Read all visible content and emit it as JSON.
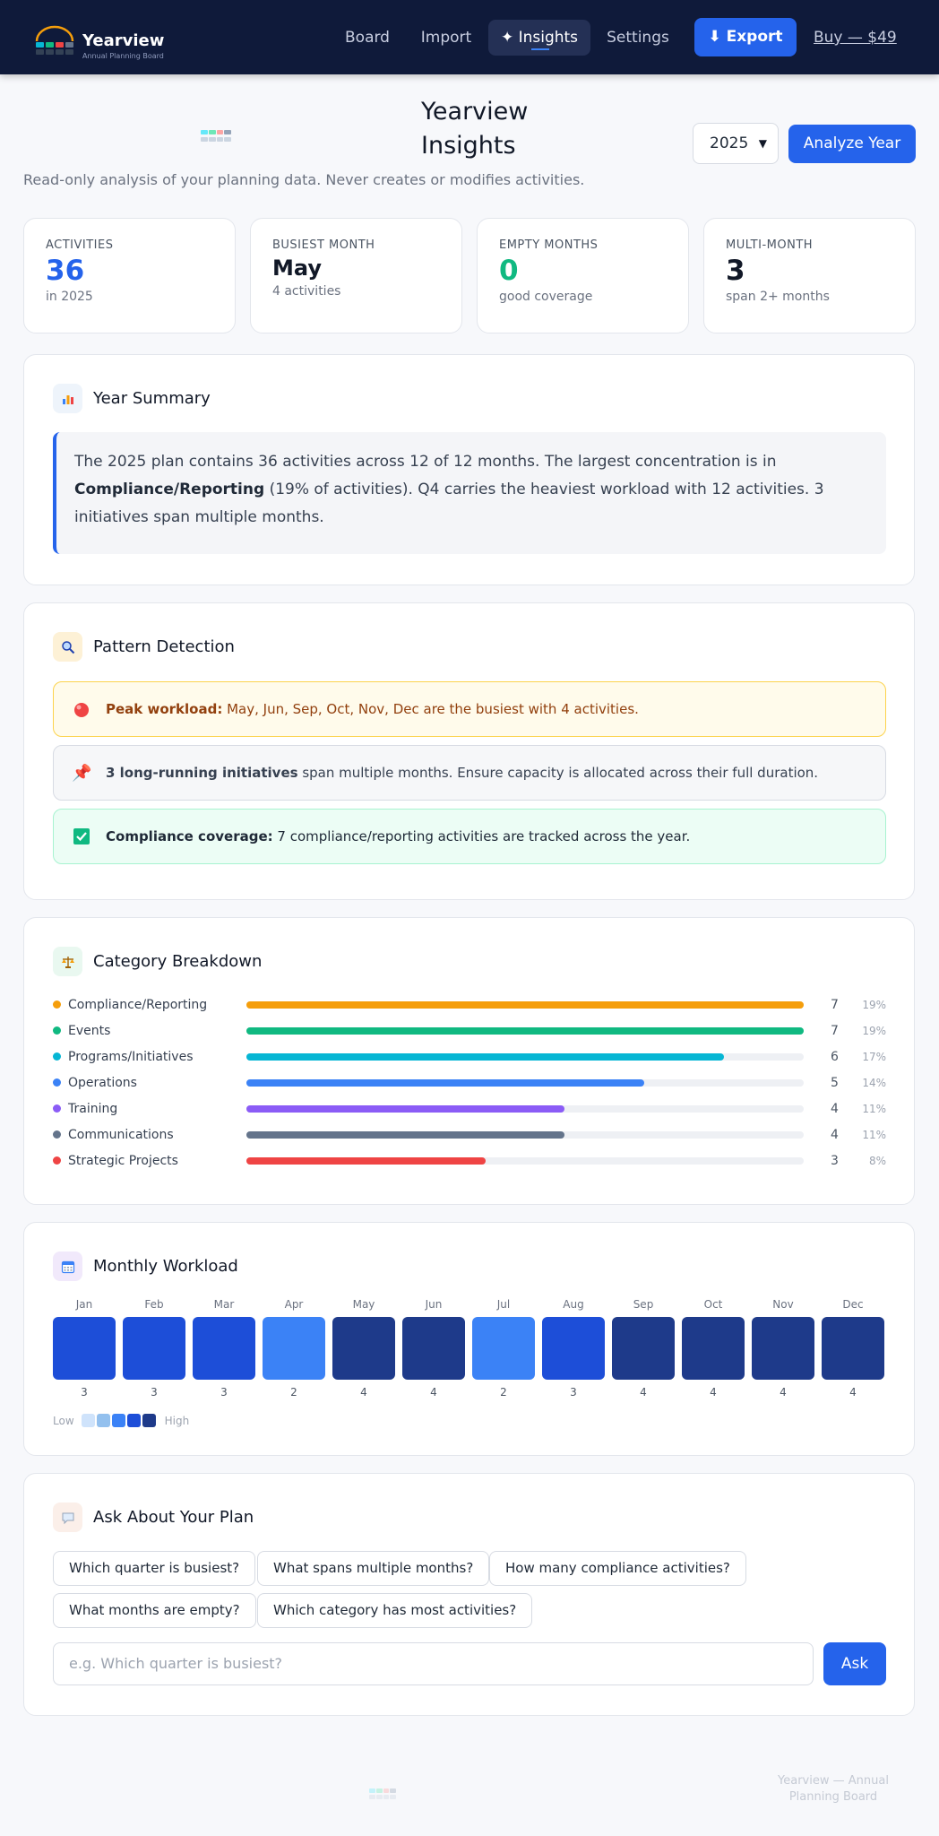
{
  "nav": {
    "brand_name": "Yearview",
    "brand_sub": "Annual Planning Board",
    "links": [
      "Board",
      "Import",
      "✦ Insights",
      "Settings"
    ],
    "export_label": "⬇ Export",
    "buy_label": "Buy — $49"
  },
  "header": {
    "title": "Yearview Insights",
    "year": "2025",
    "analyze_label": "Analyze Year",
    "subtitle": "Read-only analysis of your planning data. Never creates or modifies activities."
  },
  "stats": [
    {
      "label": "ACTIVITIES",
      "value": "36",
      "note": "in 2025",
      "color": "#2563eb"
    },
    {
      "label": "BUSIEST MONTH",
      "value": "May",
      "note": "4 activities",
      "color": "#111827"
    },
    {
      "label": "EMPTY MONTHS",
      "value": "0",
      "note": "good coverage",
      "color": "#10b981"
    },
    {
      "label": "MULTI-MONTH",
      "value": "3",
      "note": "span 2+ months",
      "color": "#111827"
    }
  ],
  "summary": {
    "title": "Year Summary",
    "icon": "bar-chart-icon",
    "text_1": "The 2025 plan contains 36 activities across 12 of 12 months. The largest concentration is in ",
    "text_bold": "Compliance/Reporting",
    "text_2": " (19% of activities). Q4 carries the heaviest workload with 12 activities. 3 initiatives span multiple months."
  },
  "patterns": {
    "title": "Pattern Detection",
    "icon": "magnifier-icon",
    "items": [
      {
        "bold": "Peak workload:",
        "text": " May, Jun, Sep, Oct, Nov, Dec are the busiest with 4 activities.",
        "icon": "red-circle-icon",
        "bg": "#fffbeb",
        "border": "#fcd34d",
        "color": "#92400e"
      },
      {
        "bold": "3 long-running initiatives",
        "text": " span multiple months. Ensure capacity is allocated across their full duration.",
        "icon": "pushpin-icon",
        "bg": "#f6f7f9",
        "border": "#d7dbe3",
        "color": "#374151"
      },
      {
        "bold": "Compliance coverage:",
        "text": " 7 compliance/reporting activities are tracked across the year.",
        "icon": "check-box-icon",
        "bg": "#ecfdf5",
        "border": "#a7f3d0",
        "color": "#1f2937"
      }
    ]
  },
  "categories": {
    "title": "Category Breakdown",
    "icon": "scale-icon",
    "max": 7,
    "items": [
      {
        "name": "Compliance/Reporting",
        "count": 7,
        "pct": "19%",
        "color": "#f59e0b"
      },
      {
        "name": "Events",
        "count": 7,
        "pct": "19%",
        "color": "#10b981"
      },
      {
        "name": "Programs/Initiatives",
        "count": 6,
        "pct": "17%",
        "color": "#06b6d4"
      },
      {
        "name": "Operations",
        "count": 5,
        "pct": "14%",
        "color": "#3b82f6"
      },
      {
        "name": "Training",
        "count": 4,
        "pct": "11%",
        "color": "#8b5cf6"
      },
      {
        "name": "Communications",
        "count": 4,
        "pct": "11%",
        "color": "#64748b"
      },
      {
        "name": "Strategic Projects",
        "count": 3,
        "pct": "8%",
        "color": "#ef4444"
      }
    ]
  },
  "workload": {
    "title": "Monthly Workload",
    "icon": "calendar-icon",
    "months": [
      "Jan",
      "Feb",
      "Mar",
      "Apr",
      "May",
      "Jun",
      "Jul",
      "Aug",
      "Sep",
      "Oct",
      "Nov",
      "Dec"
    ],
    "values": [
      3,
      3,
      3,
      2,
      4,
      4,
      2,
      3,
      4,
      4,
      4,
      4
    ],
    "legend_low": "Low",
    "legend_high": "High",
    "scale_colors": [
      "#cfe3fb",
      "#93c0ee",
      "#3b82f6",
      "#1d4ed8",
      "#1e3a8a"
    ]
  },
  "ask": {
    "title": "Ask About Your Plan",
    "icon": "speech-bubble-icon",
    "chips": [
      "Which quarter is busiest?",
      "What spans multiple months?",
      "How many compliance activities?",
      "What months are empty?",
      "Which category has most activities?"
    ],
    "placeholder": "e.g. Which quarter is busiest?",
    "button": "Ask"
  },
  "footer": {
    "text": "Yearview — Annual Planning Board"
  }
}
